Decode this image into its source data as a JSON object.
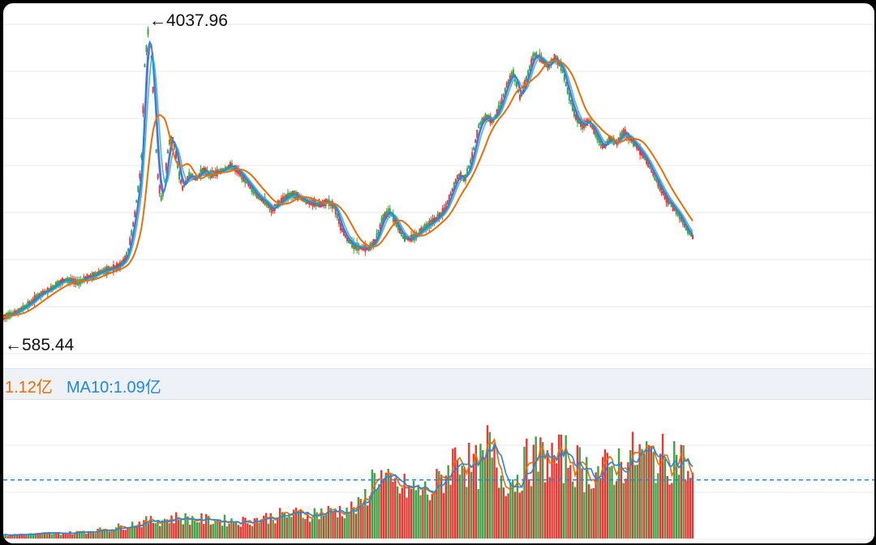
{
  "chart_data": [
    {
      "type": "line",
      "price_max_label": "4037.96",
      "price_min_label": "585.44",
      "y_range": [
        585.44,
        4037.96
      ],
      "grid": true,
      "colors": {
        "up": "#e53935",
        "down": "#43a047",
        "ma5": "#1e88e5",
        "ma10": "#26c6da",
        "ma20": "#ef6c00",
        "ma30": "#ab47bc"
      },
      "trend": [
        [
          0.0,
          700
        ],
        [
          0.02,
          760
        ],
        [
          0.04,
          860
        ],
        [
          0.05,
          940
        ],
        [
          0.07,
          1020
        ],
        [
          0.08,
          1080
        ],
        [
          0.09,
          1120
        ],
        [
          0.1,
          1110
        ],
        [
          0.11,
          1090
        ],
        [
          0.12,
          1140
        ],
        [
          0.13,
          1160
        ],
        [
          0.14,
          1200
        ],
        [
          0.15,
          1230
        ],
        [
          0.16,
          1250
        ],
        [
          0.17,
          1280
        ],
        [
          0.18,
          1400
        ],
        [
          0.19,
          1800
        ],
        [
          0.2,
          2400
        ],
        [
          0.205,
          3500
        ],
        [
          0.21,
          3900
        ],
        [
          0.215,
          3600
        ],
        [
          0.22,
          2800
        ],
        [
          0.225,
          2200
        ],
        [
          0.23,
          2000
        ],
        [
          0.235,
          2300
        ],
        [
          0.24,
          2650
        ],
        [
          0.245,
          2720
        ],
        [
          0.25,
          2550
        ],
        [
          0.255,
          2300
        ],
        [
          0.26,
          2150
        ],
        [
          0.27,
          2300
        ],
        [
          0.28,
          2250
        ],
        [
          0.29,
          2350
        ],
        [
          0.3,
          2300
        ],
        [
          0.31,
          2320
        ],
        [
          0.32,
          2350
        ],
        [
          0.33,
          2400
        ],
        [
          0.34,
          2350
        ],
        [
          0.35,
          2250
        ],
        [
          0.36,
          2150
        ],
        [
          0.37,
          2050
        ],
        [
          0.38,
          2000
        ],
        [
          0.39,
          1900
        ],
        [
          0.4,
          1980
        ],
        [
          0.41,
          2040
        ],
        [
          0.42,
          2080
        ],
        [
          0.43,
          2050
        ],
        [
          0.44,
          2000
        ],
        [
          0.45,
          1980
        ],
        [
          0.46,
          1960
        ],
        [
          0.47,
          2000
        ],
        [
          0.48,
          1950
        ],
        [
          0.49,
          1700
        ],
        [
          0.5,
          1560
        ],
        [
          0.51,
          1500
        ],
        [
          0.52,
          1480
        ],
        [
          0.53,
          1470
        ],
        [
          0.54,
          1560
        ],
        [
          0.55,
          1800
        ],
        [
          0.56,
          1900
        ],
        [
          0.57,
          1750
        ],
        [
          0.58,
          1600
        ],
        [
          0.59,
          1580
        ],
        [
          0.6,
          1620
        ],
        [
          0.61,
          1700
        ],
        [
          0.62,
          1750
        ],
        [
          0.63,
          1820
        ],
        [
          0.64,
          1900
        ],
        [
          0.65,
          2100
        ],
        [
          0.66,
          2300
        ],
        [
          0.67,
          2250
        ],
        [
          0.68,
          2500
        ],
        [
          0.69,
          2850
        ],
        [
          0.7,
          2950
        ],
        [
          0.71,
          2900
        ],
        [
          0.72,
          3050
        ],
        [
          0.73,
          3300
        ],
        [
          0.74,
          3450
        ],
        [
          0.75,
          3150
        ],
        [
          0.76,
          3400
        ],
        [
          0.77,
          3650
        ],
        [
          0.78,
          3600
        ],
        [
          0.79,
          3500
        ],
        [
          0.8,
          3620
        ],
        [
          0.81,
          3500
        ],
        [
          0.82,
          3200
        ],
        [
          0.83,
          2950
        ],
        [
          0.84,
          2850
        ],
        [
          0.85,
          2900
        ],
        [
          0.86,
          2750
        ],
        [
          0.87,
          2600
        ],
        [
          0.88,
          2700
        ],
        [
          0.89,
          2650
        ],
        [
          0.9,
          2780
        ],
        [
          0.91,
          2700
        ],
        [
          0.92,
          2600
        ],
        [
          0.93,
          2500
        ],
        [
          0.94,
          2350
        ],
        [
          0.95,
          2200
        ],
        [
          0.96,
          2050
        ],
        [
          0.97,
          1950
        ],
        [
          0.98,
          1850
        ],
        [
          0.99,
          1700
        ],
        [
          1.0,
          1600
        ]
      ]
    },
    {
      "type": "bar",
      "legend": [
        {
          "text": "1.12亿",
          "color": "#ef6c00"
        },
        {
          "text": "MA10:1.09亿",
          "color": "#1e88e5"
        }
      ],
      "reference_level": 0.42,
      "volume_trend": [
        [
          0.0,
          0.03
        ],
        [
          0.05,
          0.04
        ],
        [
          0.1,
          0.05
        ],
        [
          0.15,
          0.08
        ],
        [
          0.2,
          0.14
        ],
        [
          0.25,
          0.18
        ],
        [
          0.3,
          0.16
        ],
        [
          0.35,
          0.15
        ],
        [
          0.4,
          0.2
        ],
        [
          0.45,
          0.22
        ],
        [
          0.5,
          0.25
        ],
        [
          0.52,
          0.28
        ],
        [
          0.54,
          0.58
        ],
        [
          0.56,
          0.45
        ],
        [
          0.6,
          0.42
        ],
        [
          0.62,
          0.4
        ],
        [
          0.64,
          0.55
        ],
        [
          0.66,
          0.75
        ],
        [
          0.68,
          0.6
        ],
        [
          0.7,
          0.65
        ],
        [
          0.7,
          0.6
        ],
        [
          0.69,
          0.98
        ],
        [
          0.72,
          0.55
        ],
        [
          0.74,
          0.5
        ],
        [
          0.76,
          0.66
        ],
        [
          0.78,
          0.7
        ],
        [
          0.8,
          0.68
        ],
        [
          0.82,
          0.7
        ],
        [
          0.84,
          0.6
        ],
        [
          0.86,
          0.58
        ],
        [
          0.88,
          0.6
        ],
        [
          0.9,
          0.68
        ],
        [
          0.92,
          0.72
        ],
        [
          0.94,
          0.7
        ],
        [
          0.96,
          0.68
        ],
        [
          0.98,
          0.75
        ],
        [
          1.0,
          0.48
        ]
      ]
    }
  ]
}
